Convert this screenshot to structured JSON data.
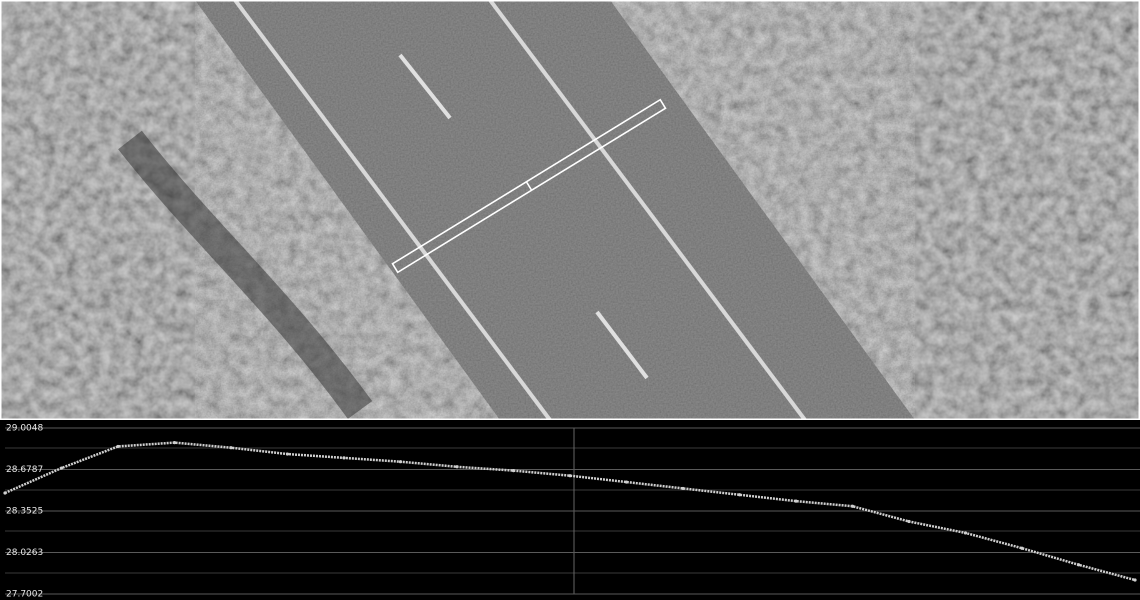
{
  "chart_data": {
    "type": "line",
    "values": [
      28.494,
      28.69,
      28.86,
      28.89,
      28.85,
      28.8,
      28.77,
      28.74,
      28.7,
      28.67,
      28.63,
      28.58,
      28.53,
      28.48,
      28.43,
      28.39,
      28.27,
      28.18,
      28.06,
      27.93,
      27.81
    ],
    "color": "#cfcfcf",
    "ylim": [
      27.7002,
      29.0048
    ],
    "yticks": [
      27.7002,
      28.0263,
      28.3525,
      28.6787,
      29.0048
    ],
    "grid": true
  }
}
